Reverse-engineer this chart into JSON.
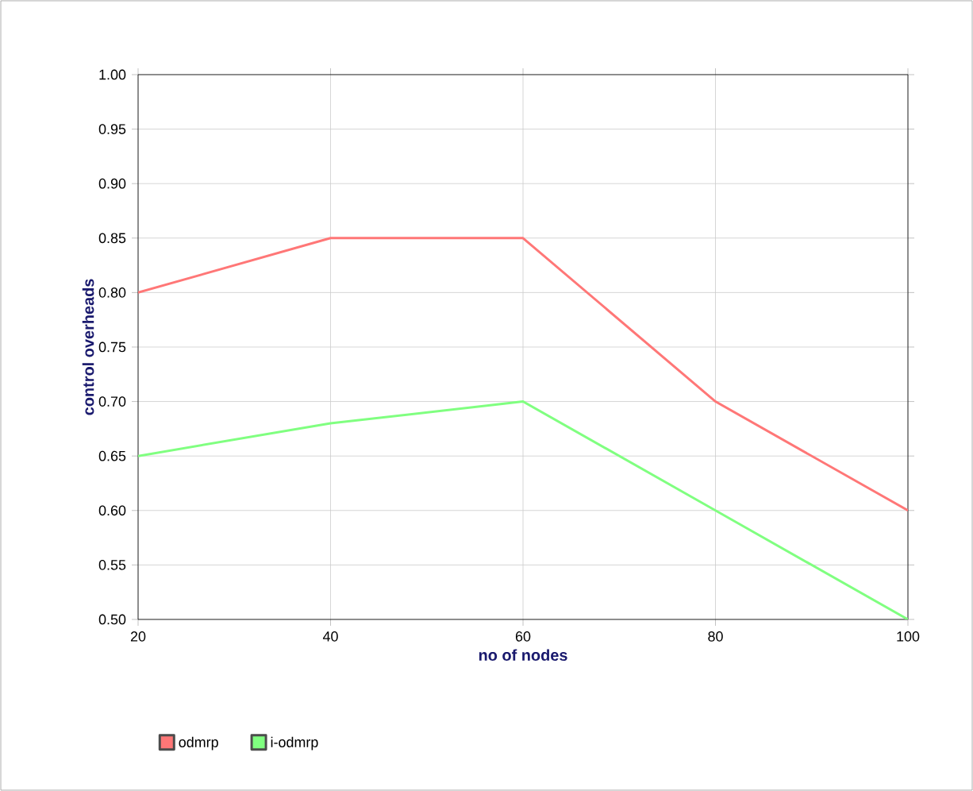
{
  "chart_data": {
    "type": "line",
    "xlabel": "no of nodes",
    "ylabel": "control overheads",
    "x": [
      20,
      40,
      60,
      80,
      100
    ],
    "series": [
      {
        "name": "odmrp",
        "color": "#ff7777",
        "values": [
          0.8,
          0.85,
          0.85,
          0.7,
          0.6
        ]
      },
      {
        "name": "i-odmrp",
        "color": "#80ff80",
        "values": [
          0.65,
          0.68,
          0.7,
          0.6,
          0.5
        ]
      }
    ],
    "xlim": [
      20,
      100
    ],
    "xticks": [
      20,
      40,
      60,
      80,
      100
    ],
    "ylim": [
      0.5,
      1.0
    ],
    "yticks": [
      {
        "value": 0.5,
        "label": "0.50"
      },
      {
        "value": 0.55,
        "label": "0.55"
      },
      {
        "value": 0.6,
        "label": "0.60"
      },
      {
        "value": 0.65,
        "label": "0.65"
      },
      {
        "value": 0.7,
        "label": "0.70"
      },
      {
        "value": 0.75,
        "label": "0.75"
      },
      {
        "value": 0.8,
        "label": "0.80"
      },
      {
        "value": 0.85,
        "label": "0.85"
      },
      {
        "value": 0.9,
        "label": "0.90"
      },
      {
        "value": 0.95,
        "label": "0.95"
      },
      {
        "value": 1.0,
        "label": "1.00"
      }
    ],
    "grid": true,
    "legend": "bottom left",
    "marker": "none",
    "line_style": "solid"
  }
}
